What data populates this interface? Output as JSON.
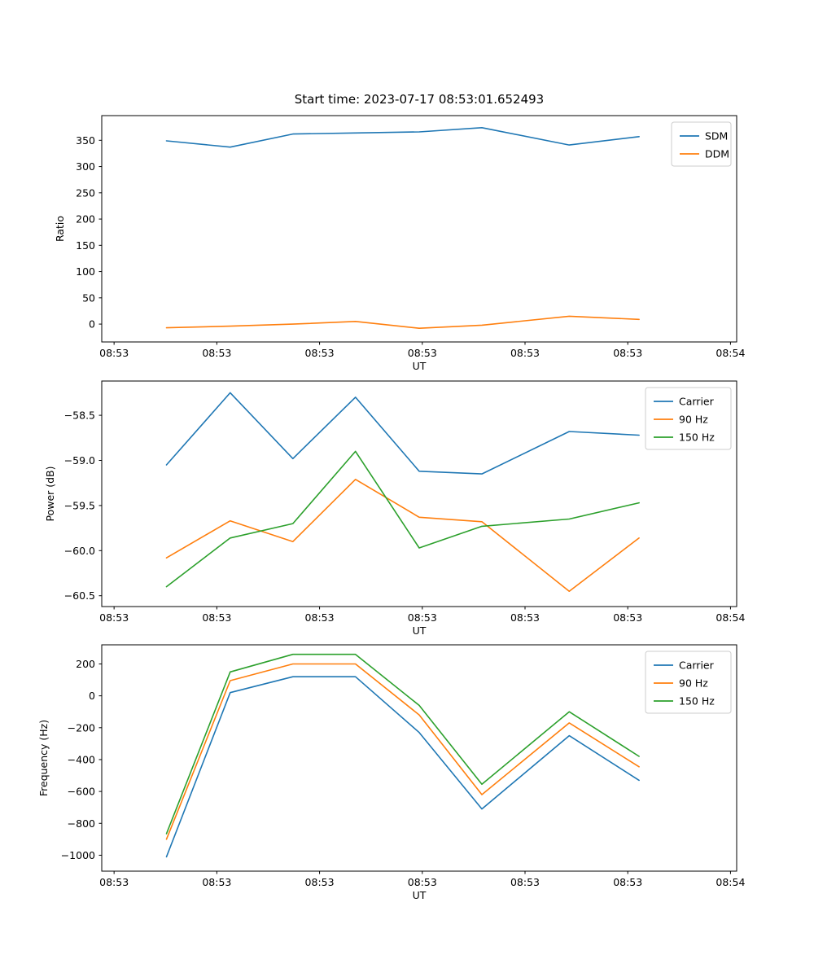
{
  "figure": {
    "background": "#ffffff"
  },
  "chart_data": [
    {
      "name": "ratio-chart",
      "type": "line",
      "title": "Start time: 2023-07-17 08:53:01.652493",
      "xlabel": "UT",
      "ylabel": "Ratio",
      "x": [
        5.1,
        11.3,
        17.4,
        23.5,
        29.7,
        35.8,
        44.3,
        51.1
      ],
      "xlim": [
        -1.2,
        60.6
      ],
      "xticks": [
        0,
        10,
        20,
        30,
        40,
        50,
        60
      ],
      "xtick_labels": [
        "08:53",
        "08:53",
        "08:53",
        "08:53",
        "08:53",
        "08:53",
        "08:54"
      ],
      "ylim": [
        -34,
        397
      ],
      "yticks": [
        0,
        50,
        100,
        150,
        200,
        250,
        300,
        350
      ],
      "ytick_decimals": 0,
      "legend_position": "upper right",
      "series": [
        {
          "name": "SDM",
          "color": "#1f77b4",
          "values": [
            349,
            337,
            362,
            364,
            366,
            374,
            341,
            357
          ]
        },
        {
          "name": "DDM",
          "color": "#ff7f0e",
          "values": [
            -7,
            -4,
            0,
            5,
            -8,
            -2,
            15,
            9
          ]
        }
      ]
    },
    {
      "name": "power-chart",
      "type": "line",
      "title": "",
      "xlabel": "UT",
      "ylabel": "Power (dB)",
      "x": [
        5.1,
        11.3,
        17.4,
        23.5,
        29.7,
        35.8,
        44.3,
        51.1
      ],
      "xlim": [
        -1.2,
        60.6
      ],
      "xticks": [
        0,
        10,
        20,
        30,
        40,
        50,
        60
      ],
      "xtick_labels": [
        "08:53",
        "08:53",
        "08:53",
        "08:53",
        "08:53",
        "08:53",
        "08:54"
      ],
      "ylim": [
        -60.62,
        -58.12
      ],
      "yticks": [
        -58.5,
        -59.0,
        -59.5,
        -60.0,
        -60.5
      ],
      "ytick_decimals": 1,
      "legend_position": "upper right",
      "series": [
        {
          "name": "Carrier",
          "color": "#1f77b4",
          "values": [
            -59.05,
            -58.25,
            -58.98,
            -58.3,
            -59.12,
            -59.15,
            -58.68,
            -58.72
          ]
        },
        {
          "name": "90 Hz",
          "color": "#ff7f0e",
          "values": [
            -60.08,
            -59.67,
            -59.9,
            -59.21,
            -59.63,
            -59.68,
            -60.45,
            -59.86
          ]
        },
        {
          "name": "150 Hz",
          "color": "#2ca02c",
          "values": [
            -60.4,
            -59.86,
            -59.7,
            -58.9,
            -59.97,
            -59.73,
            -59.65,
            -59.47
          ]
        }
      ]
    },
    {
      "name": "frequency-chart",
      "type": "line",
      "title": "",
      "xlabel": "UT",
      "ylabel": "Frequency (Hz)",
      "x": [
        5.1,
        11.3,
        17.4,
        23.5,
        29.7,
        35.8,
        44.3,
        51.1
      ],
      "xlim": [
        -1.2,
        60.6
      ],
      "xticks": [
        0,
        10,
        20,
        30,
        40,
        50,
        60
      ],
      "xtick_labels": [
        "08:53",
        "08:53",
        "08:53",
        "08:53",
        "08:53",
        "08:53",
        "08:54"
      ],
      "ylim": [
        -1100,
        320
      ],
      "yticks": [
        -1000,
        -800,
        -600,
        -400,
        -200,
        0,
        200
      ],
      "ytick_decimals": 0,
      "legend_position": "upper right",
      "series": [
        {
          "name": "Carrier",
          "color": "#1f77b4",
          "values": [
            -1010,
            20,
            120,
            120,
            -230,
            -710,
            -250,
            -530
          ]
        },
        {
          "name": "90 Hz",
          "color": "#ff7f0e",
          "values": [
            -900,
            95,
            200,
            200,
            -120,
            -620,
            -170,
            -445
          ]
        },
        {
          "name": "150 Hz",
          "color": "#2ca02c",
          "values": [
            -865,
            150,
            260,
            260,
            -60,
            -555,
            -100,
            -380
          ]
        }
      ]
    }
  ]
}
